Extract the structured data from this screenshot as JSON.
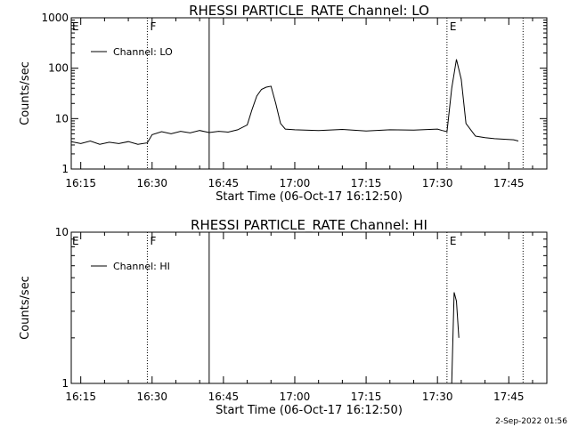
{
  "footer_timestamp": "2-Sep-2022 01:56",
  "chart_data": [
    {
      "type": "line",
      "title": "RHESSI PARTICLE_RATE Channel: LO",
      "xlabel": "Start Time (06-Oct-17 16:12:50)",
      "ylabel": "Counts/sec",
      "yscale": "log",
      "xlim": [
        "16:13",
        "17:53"
      ],
      "ylim": [
        1,
        1000
      ],
      "x_ticks": [
        "16:15",
        "16:30",
        "16:45",
        "17:00",
        "17:15",
        "17:30",
        "17:45"
      ],
      "y_ticks": [
        "1",
        "10",
        "100",
        "1000"
      ],
      "legend": {
        "position": "top-left",
        "entries": [
          "Channel: LO"
        ]
      },
      "vlines": [
        {
          "time": "16:29",
          "style": "dotted",
          "label": "F"
        },
        {
          "time": "16:42",
          "style": "solid",
          "label": ""
        },
        {
          "time": "17:32",
          "style": "dotted",
          "label": "E"
        },
        {
          "time": "17:48",
          "style": "dotted",
          "label": ""
        }
      ],
      "edge_labels": [
        {
          "time": "16:13",
          "label": "E"
        }
      ],
      "series": [
        {
          "name": "Channel: LO",
          "x": [
            "16:13",
            "16:15",
            "16:17",
            "16:19",
            "16:21",
            "16:23",
            "16:25",
            "16:27",
            "16:29",
            "16:30",
            "16:32",
            "16:34",
            "16:36",
            "16:38",
            "16:40",
            "16:42",
            "16:44",
            "16:46",
            "16:48",
            "16:50",
            "16:51",
            "16:52",
            "16:53",
            "16:54",
            "16:55",
            "16:56",
            "16:57",
            "16:58",
            "17:00",
            "17:05",
            "17:10",
            "17:15",
            "17:20",
            "17:25",
            "17:30",
            "17:31",
            "17:32",
            "17:33",
            "17:34",
            "17:35",
            "17:36",
            "17:38",
            "17:40",
            "17:42",
            "17:44",
            "17:46",
            "17:47"
          ],
          "y": [
            3.5,
            3.2,
            3.6,
            3.1,
            3.4,
            3.2,
            3.5,
            3.1,
            3.3,
            4.8,
            5.5,
            5.0,
            5.6,
            5.2,
            5.8,
            5.3,
            5.6,
            5.4,
            6.0,
            7.5,
            15,
            28,
            38,
            42,
            44,
            20,
            8.0,
            6.2,
            6.0,
            5.8,
            6.1,
            5.7,
            6.0,
            5.9,
            6.2,
            5.8,
            5.5,
            40,
            150,
            60,
            8.0,
            4.5,
            4.2,
            4.0,
            3.9,
            3.8,
            3.6
          ]
        }
      ]
    },
    {
      "type": "line",
      "title": "RHESSI PARTICLE_RATE Channel: HI",
      "xlabel": "Start Time (06-Oct-17 16:12:50)",
      "ylabel": "Counts/sec",
      "yscale": "log",
      "xlim": [
        "16:13",
        "17:53"
      ],
      "ylim": [
        1,
        10
      ],
      "x_ticks": [
        "16:15",
        "16:30",
        "16:45",
        "17:00",
        "17:15",
        "17:30",
        "17:45"
      ],
      "y_ticks": [
        "1",
        "10"
      ],
      "legend": {
        "position": "top-left",
        "entries": [
          "Channel: HI"
        ]
      },
      "vlines": [
        {
          "time": "16:29",
          "style": "dotted",
          "label": "F"
        },
        {
          "time": "16:42",
          "style": "solid",
          "label": ""
        },
        {
          "time": "17:32",
          "style": "dotted",
          "label": "E"
        },
        {
          "time": "17:48",
          "style": "dotted",
          "label": ""
        }
      ],
      "edge_labels": [
        {
          "time": "16:13",
          "label": "E"
        }
      ],
      "series": [
        {
          "name": "Channel: HI",
          "x": [
            "17:33.0",
            "17:33.5",
            "17:34.0",
            "17:34.5"
          ],
          "y": [
            1.0,
            4.0,
            3.5,
            2.0
          ]
        }
      ]
    }
  ]
}
